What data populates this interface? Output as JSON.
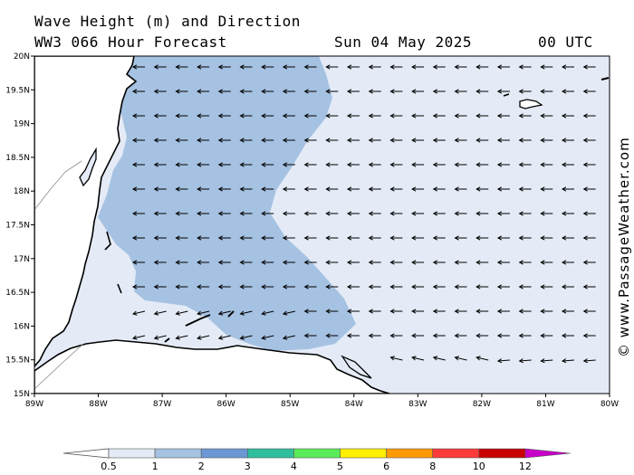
{
  "header": {
    "line1": "Wave Height (m) and Direction",
    "line2": "WW3 066 Hour Forecast",
    "date": "Sun 04 May 2025",
    "time": "00 UTC"
  },
  "watermark": "© www.PassageWeather.com",
  "map": {
    "lon_range": [
      -89,
      -80
    ],
    "lat_range": [
      15,
      20
    ],
    "lon_ticks": [
      "89W",
      "88W",
      "87W",
      "86W",
      "85W",
      "84W",
      "83W",
      "82W",
      "81W",
      "80W"
    ],
    "lat_ticks": [
      "15N",
      "15.5N",
      "16N",
      "16.5N",
      "17N",
      "17.5N",
      "18N",
      "18.5N",
      "19N",
      "19.5N",
      "20N"
    ],
    "dominant_wave_direction": "waves propagating toward the west (easterly swell)",
    "colors": {
      "land": "#ffffff",
      "lt_1m": "#e4ebf7",
      "1_2m": "#a6c2e2",
      "coast": "#000000"
    }
  },
  "colorbar": {
    "ticks": [
      "0.5",
      "1",
      "2",
      "3",
      "4",
      "5",
      "6",
      "8",
      "10",
      "12"
    ],
    "colors": [
      "#e4ebf7",
      "#a6c2e2",
      "#6b97d3",
      "#2ebf9d",
      "#5aeb5a",
      "#fff000",
      "#ff9a00",
      "#ff3a3a",
      "#c80000",
      "#c800c8"
    ]
  }
}
